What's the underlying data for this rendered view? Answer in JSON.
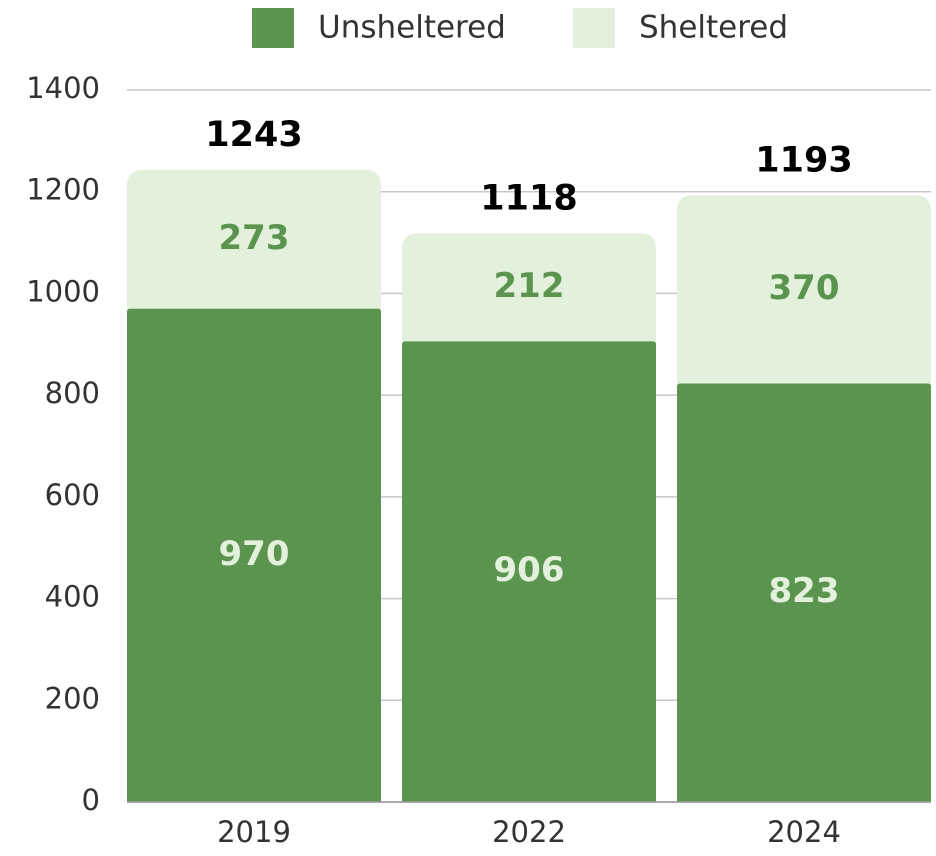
{
  "chart_data": {
    "type": "stacked_bar",
    "categories": [
      "2019",
      "2022",
      "2024"
    ],
    "series": [
      {
        "name": "Unsheltered",
        "color": "#5a944f",
        "values": [
          970,
          906,
          823
        ]
      },
      {
        "name": "Sheltered",
        "color": "#e3f0db",
        "values": [
          273,
          212,
          370
        ]
      }
    ],
    "totals": [
      1243,
      1118,
      1193
    ],
    "ylim": [
      0,
      1400
    ],
    "yticks": [
      0,
      200,
      400,
      600,
      800,
      1000,
      1200,
      1400
    ],
    "grid": true,
    "legend": "top"
  }
}
